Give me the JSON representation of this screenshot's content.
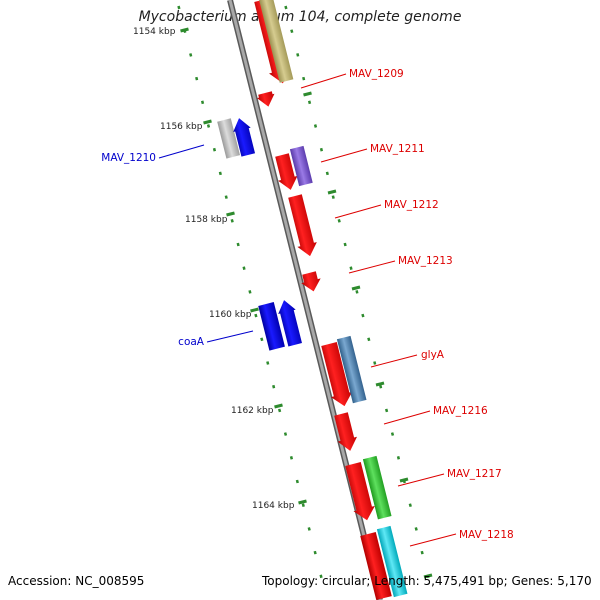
{
  "title": "Mycobacterium avium 104, complete genome",
  "accession": "Accession: NC_008595",
  "summary": "Topology: circular; Length: 5,475,491 bp; Genes: 5,170",
  "colors": {
    "backbone": "#8a8a8a",
    "tick": "#2e8b2e",
    "label_plus": "#dd0000",
    "label_minus": "#0000cc"
  },
  "scale_labels": [
    "1154 kbp",
    "1156 kbp",
    "1158 kbp",
    "1160 kbp",
    "1162 kbp",
    "1164 kbp"
  ],
  "genes": [
    {
      "name": "MAV_1209",
      "strand": "plus",
      "color": "red"
    },
    {
      "name": "MAV_1210",
      "strand": "minus",
      "color": "grey"
    },
    {
      "name": "MAV_1211",
      "strand": "plus",
      "color": "red"
    },
    {
      "name": "MAV_1212",
      "strand": "plus",
      "color": "red"
    },
    {
      "name": "MAV_1213",
      "strand": "plus",
      "color": "red"
    },
    {
      "name": "coaA",
      "strand": "minus",
      "color": "blue"
    },
    {
      "name": "glyA",
      "strand": "plus",
      "color": "red"
    },
    {
      "name": "MAV_1216",
      "strand": "plus",
      "color": "red"
    },
    {
      "name": "MAV_1217",
      "strand": "plus",
      "color": "red"
    },
    {
      "name": "MAV_1218",
      "strand": "plus",
      "color": "red"
    }
  ]
}
